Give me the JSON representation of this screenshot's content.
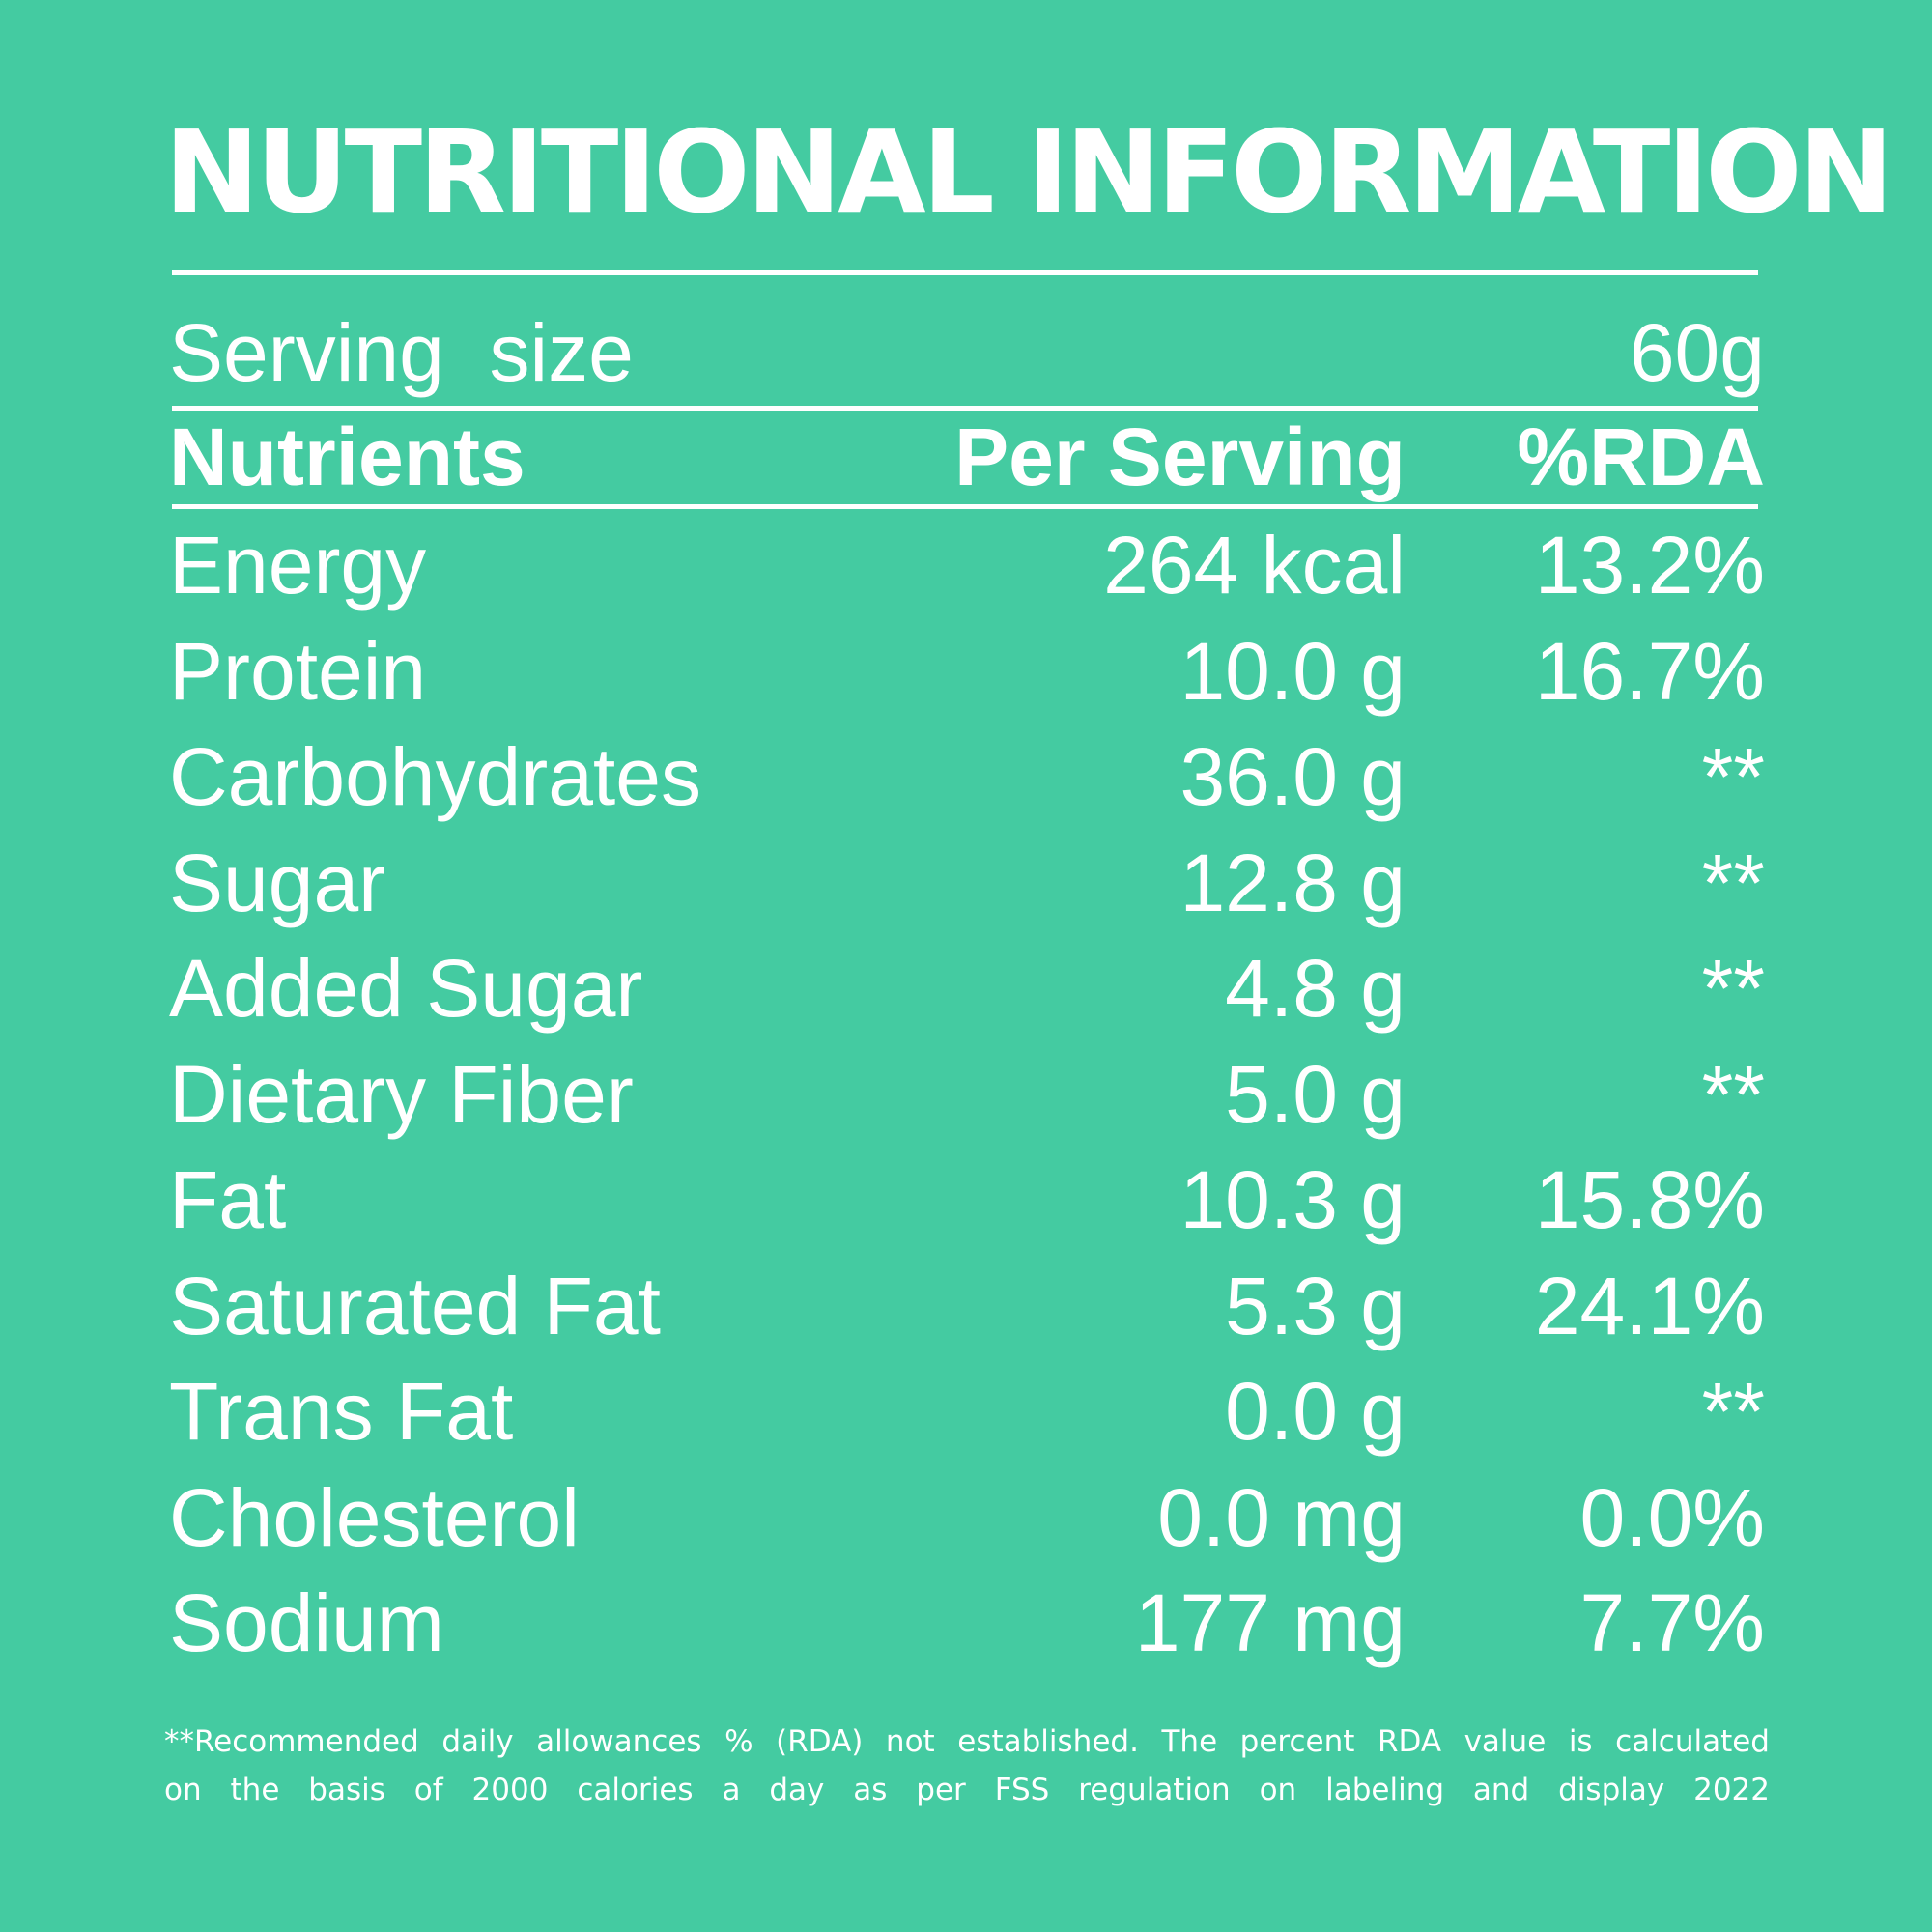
{
  "title": "NUTRITIONAL INFORMATION",
  "serving": {
    "label": "Serving  size",
    "value": "60g"
  },
  "header": {
    "nutrients": "Nutrients",
    "per_serving": "Per Serving",
    "rda": "%RDA"
  },
  "nutrients": [
    {
      "name": "Energy",
      "per": "264 kcal",
      "rda": "13.2%"
    },
    {
      "name": "Protein",
      "per": "10.0 g",
      "rda": "16.7%"
    },
    {
      "name": "Carbohydrates",
      "per": "36.0 g",
      "rda": "**"
    },
    {
      "name": "Sugar",
      "per": "12.8 g",
      "rda": "**"
    },
    {
      "name": "Added Sugar",
      "per": "4.8 g",
      "rda": "**"
    },
    {
      "name": "Dietary Fiber",
      "per": "5.0 g",
      "rda": "**"
    },
    {
      "name": "Fat",
      "per": "10.3 g",
      "rda": "15.8%"
    },
    {
      "name": "Saturated Fat",
      "per": "5.3 g",
      "rda": "24.1%"
    },
    {
      "name": "Trans Fat",
      "per": "0.0 g",
      "rda": "**"
    },
    {
      "name": "Cholesterol",
      "per": "0.0 mg",
      "rda": "0.0%"
    },
    {
      "name": "Sodium",
      "per": "177 mg",
      "rda": "7.7%"
    }
  ],
  "footnote": {
    "line1": "**Recommended daily allowances % (RDA) not established. The percent RDA value is calculated",
    "line2": "on the basis of 2000 calories a day as per FSS regulation on labeling and display 2022"
  },
  "colors": {
    "background": "#44cba1",
    "text": "#ffffff"
  }
}
